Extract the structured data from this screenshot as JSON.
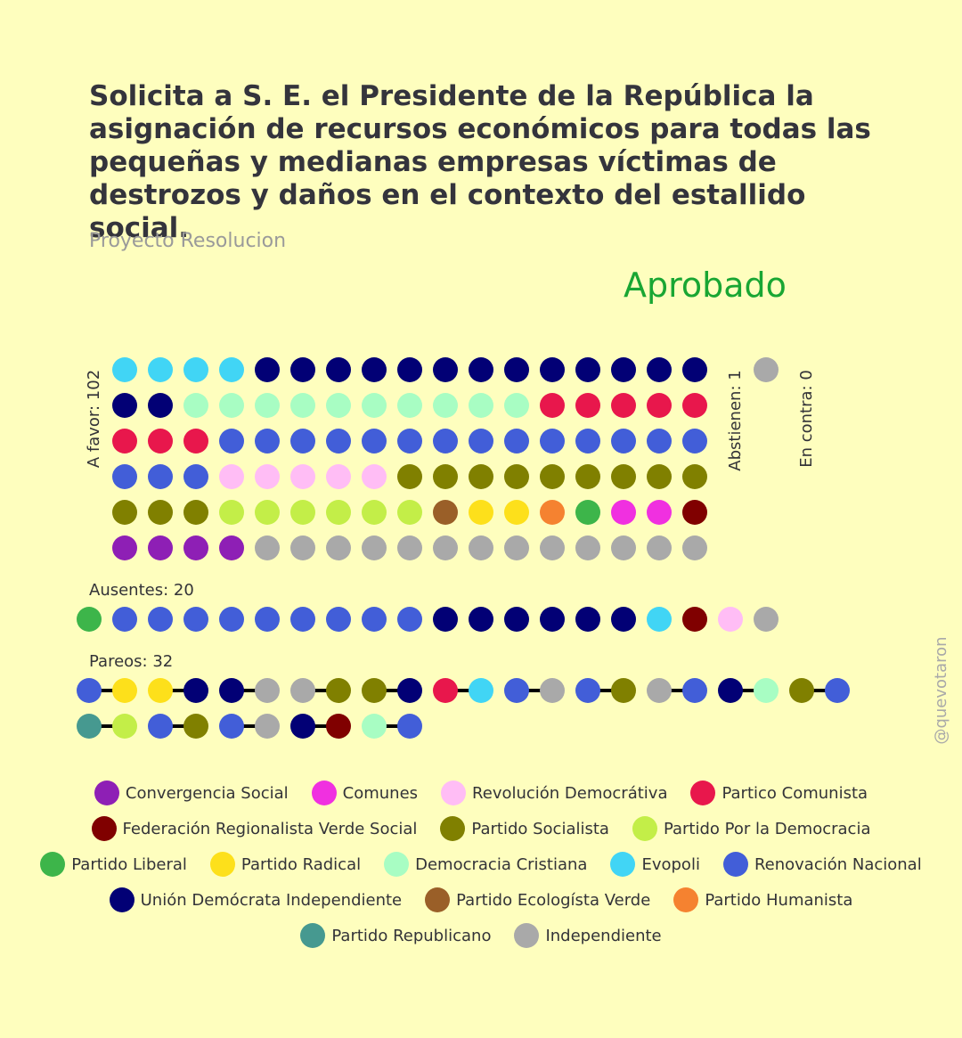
{
  "title": "Solicita a S. E. el Presidente de la República la asignación de recursos económicos para todas las pequeñas y medianas empresas víctimas de destrozos y daños en el contexto del estallido social.",
  "subtitle": "Proyecto Resolucion",
  "result": "Aprobado",
  "watermark": "@quevotaron",
  "parties": {
    "CS": {
      "name": "Convergencia Social",
      "color": "#8E1FB5"
    },
    "COM": {
      "name": "Comunes",
      "color": "#F030E0"
    },
    "RD": {
      "name": "Revolución Democrátiva",
      "color": "#FFBDF5"
    },
    "PC": {
      "name": "Partico Comunista",
      "color": "#E8174C"
    },
    "FRVS": {
      "name": "Federación Regionalista Verde Social",
      "color": "#800000"
    },
    "PS": {
      "name": "Partido Socialista",
      "color": "#808000"
    },
    "PPD": {
      "name": "Partido Por la Democracia",
      "color": "#C3EE48"
    },
    "PL": {
      "name": "Partido Liberal",
      "color": "#3DB54A"
    },
    "PR": {
      "name": "Partido Radical",
      "color": "#FDE01B"
    },
    "DC": {
      "name": "Democracia Cristiana",
      "color": "#A8FDC3"
    },
    "EVO": {
      "name": "Evopoli",
      "color": "#41D5F5"
    },
    "RN": {
      "name": "Renovación Nacional",
      "color": "#425ED8"
    },
    "UDI": {
      "name": "Unión Demócrata Independiente",
      "color": "#020075"
    },
    "PEV": {
      "name": "Partido Ecologísta Verde",
      "color": "#9A5F28"
    },
    "PH": {
      "name": "Partido Humanista",
      "color": "#F58230"
    },
    "REP": {
      "name": "Partido Republicano",
      "color": "#469990"
    },
    "IND": {
      "name": "Independiente",
      "color": "#A9A9A9"
    }
  },
  "legend_order": [
    "CS",
    "COM",
    "RD",
    "PC",
    "FRVS",
    "PS",
    "PPD",
    "PL",
    "PR",
    "DC",
    "EVO",
    "RN",
    "UDI",
    "PEV",
    "PH",
    "REP",
    "IND"
  ],
  "chart_data": {
    "type": "scatter",
    "a_favor": {
      "label": "A favor: 102",
      "count": 102,
      "rows": [
        [
          "EVO",
          "EVO",
          "EVO",
          "EVO",
          "UDI",
          "UDI",
          "UDI",
          "UDI",
          "UDI",
          "UDI",
          "UDI",
          "UDI",
          "UDI",
          "UDI",
          "UDI",
          "UDI",
          "UDI"
        ],
        [
          "UDI",
          "UDI",
          "DC",
          "DC",
          "DC",
          "DC",
          "DC",
          "DC",
          "DC",
          "DC",
          "DC",
          "DC",
          "PC",
          "PC",
          "PC",
          "PC",
          "PC"
        ],
        [
          "PC",
          "PC",
          "PC",
          "RN",
          "RN",
          "RN",
          "RN",
          "RN",
          "RN",
          "RN",
          "RN",
          "RN",
          "RN",
          "RN",
          "RN",
          "RN",
          "RN"
        ],
        [
          "RN",
          "RN",
          "RN",
          "RD",
          "RD",
          "RD",
          "RD",
          "RD",
          "PS",
          "PS",
          "PS",
          "PS",
          "PS",
          "PS",
          "PS",
          "PS",
          "PS"
        ],
        [
          "PS",
          "PS",
          "PS",
          "PPD",
          "PPD",
          "PPD",
          "PPD",
          "PPD",
          "PPD",
          "PEV",
          "PR",
          "PR",
          "PH",
          "PL",
          "COM",
          "COM",
          "FRVS"
        ],
        [
          "CS",
          "CS",
          "CS",
          "CS",
          "IND",
          "IND",
          "IND",
          "IND",
          "IND",
          "IND",
          "IND",
          "IND",
          "IND",
          "IND",
          "IND",
          "IND",
          "IND"
        ]
      ]
    },
    "abstienen": {
      "label": "Abstienen: 1",
      "count": 1,
      "votes": [
        "IND"
      ]
    },
    "en_contra": {
      "label": "En contra: 0",
      "count": 0,
      "votes": []
    },
    "ausentes": {
      "label": "Ausentes: 20",
      "count": 20,
      "votes": [
        "PL",
        "RN",
        "RN",
        "RN",
        "RN",
        "RN",
        "RN",
        "RN",
        "RN",
        "RN",
        "UDI",
        "UDI",
        "UDI",
        "UDI",
        "UDI",
        "UDI",
        "EVO",
        "FRVS",
        "RD",
        "IND"
      ]
    },
    "pareos": {
      "label": "Pareos: 32",
      "count": 32,
      "pairs": [
        [
          "RN",
          "PR"
        ],
        [
          "PR",
          "UDI"
        ],
        [
          "UDI",
          "IND"
        ],
        [
          "IND",
          "PS"
        ],
        [
          "PS",
          "UDI"
        ],
        [
          "PC",
          "EVO"
        ],
        [
          "RN",
          "IND"
        ],
        [
          "RN",
          "PS"
        ],
        [
          "IND",
          "RN"
        ],
        [
          "UDI",
          "DC"
        ],
        [
          "PS",
          "RN"
        ],
        [
          "REP",
          "PPD"
        ],
        [
          "RN",
          "PS"
        ],
        [
          "RN",
          "IND"
        ],
        [
          "UDI",
          "FRVS"
        ],
        [
          "DC",
          "RN"
        ]
      ]
    }
  }
}
